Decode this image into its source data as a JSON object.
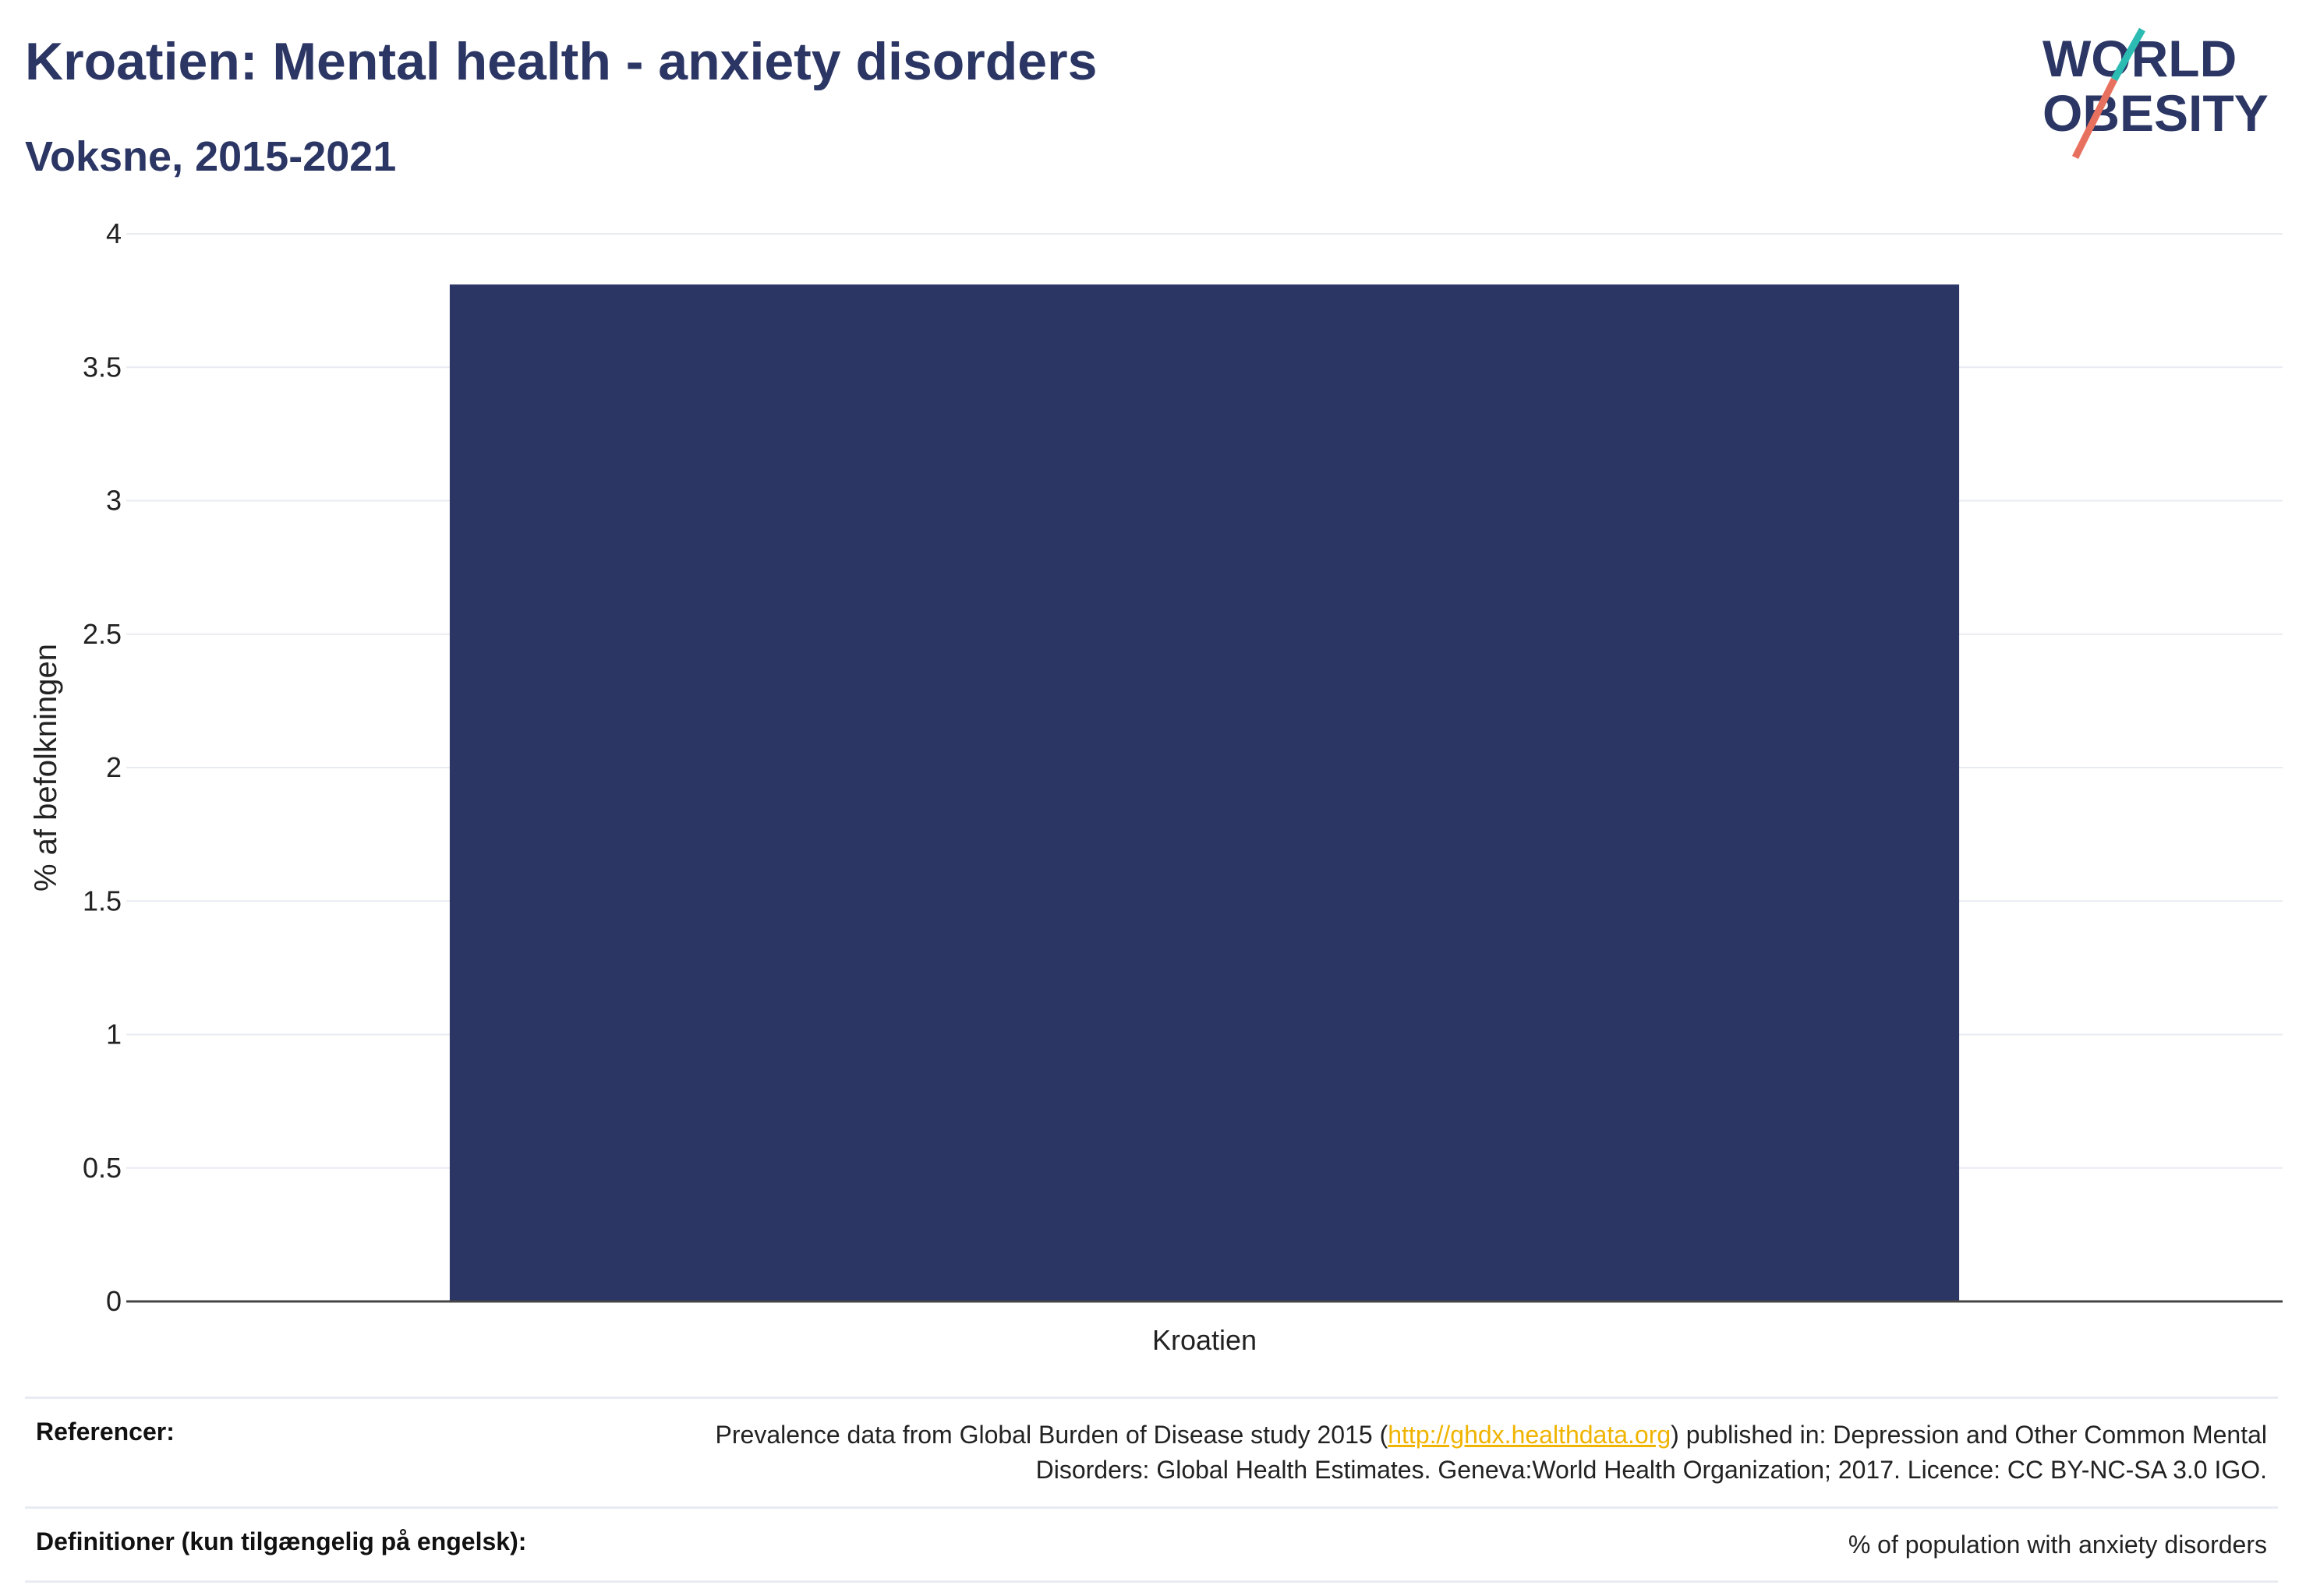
{
  "header": {
    "title": "Kroatien: Mental health - anxiety disorders",
    "subtitle": "Voksne, 2015-2021"
  },
  "logo": {
    "line1": "WORLD",
    "line2": "OBESITY"
  },
  "colors": {
    "bar": "#2b3664",
    "text": "#2b3664",
    "accent_teal": "#2bbbb3",
    "accent_coral": "#e8705f",
    "link": "#f0b400",
    "grid": "#e8ebf2"
  },
  "chart_data": {
    "type": "bar",
    "categories": [
      "Kroatien"
    ],
    "values": [
      3.81
    ],
    "ylabel": "% af befolkningen",
    "xlabel": "",
    "ylim": [
      0,
      4
    ],
    "yticks": [
      "0",
      "0.5",
      "1",
      "1.5",
      "2",
      "2.5",
      "3",
      "3.5",
      "4"
    ],
    "grid": true
  },
  "footer": {
    "references_label": "Referencer:",
    "references_text_before": "Prevalence data from Global Burden of Disease study 2015 (",
    "references_link": "http://ghdx.healthdata.org",
    "references_text_after": ") published in: Depression and Other Common Mental Disorders: Global Health Estimates. Geneva:World Health Organization; 2017. Licence: CC BY-NC-SA 3.0 IGO.",
    "definitions_label": "Definitioner (kun tilgængelig på engelsk):",
    "definitions_text": "% of population with anxiety disorders"
  }
}
